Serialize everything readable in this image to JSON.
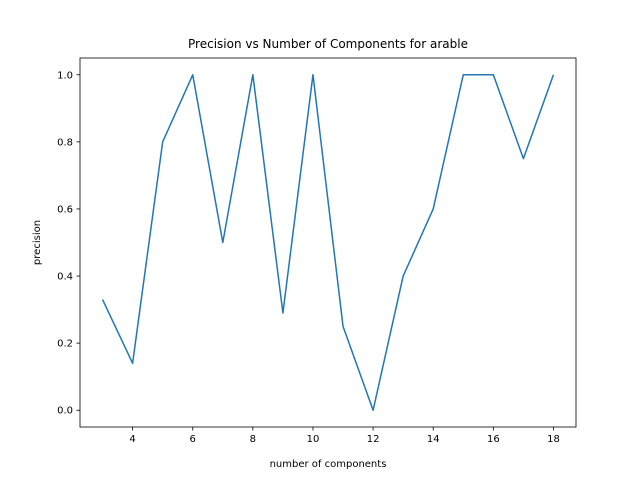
{
  "chart_data": {
    "type": "line",
    "title": "Precision vs Number of Components for arable",
    "xlabel": "number of components",
    "ylabel": "precision",
    "xlim": [
      2.25,
      18.75
    ],
    "ylim": [
      -0.05,
      1.05
    ],
    "xticks": [
      4,
      6,
      8,
      10,
      12,
      14,
      16,
      18
    ],
    "yticks": [
      0.0,
      0.2,
      0.4,
      0.6,
      0.8,
      1.0
    ],
    "xtick_labels": [
      "4",
      "6",
      "8",
      "10",
      "12",
      "14",
      "16",
      "18"
    ],
    "ytick_labels": [
      "0.0",
      "0.2",
      "0.4",
      "0.6",
      "0.8",
      "1.0"
    ],
    "grid": false,
    "series": [
      {
        "color": "#1f77b4",
        "x": [
          3,
          4,
          5,
          6,
          7,
          8,
          9,
          10,
          11,
          12,
          13,
          14,
          15,
          16,
          17,
          18
        ],
        "values": [
          0.33,
          0.14,
          0.8,
          1.0,
          0.5,
          1.0,
          0.29,
          1.0,
          0.25,
          0.0,
          0.4,
          0.6,
          1.0,
          1.0,
          0.75,
          1.0
        ]
      }
    ]
  }
}
